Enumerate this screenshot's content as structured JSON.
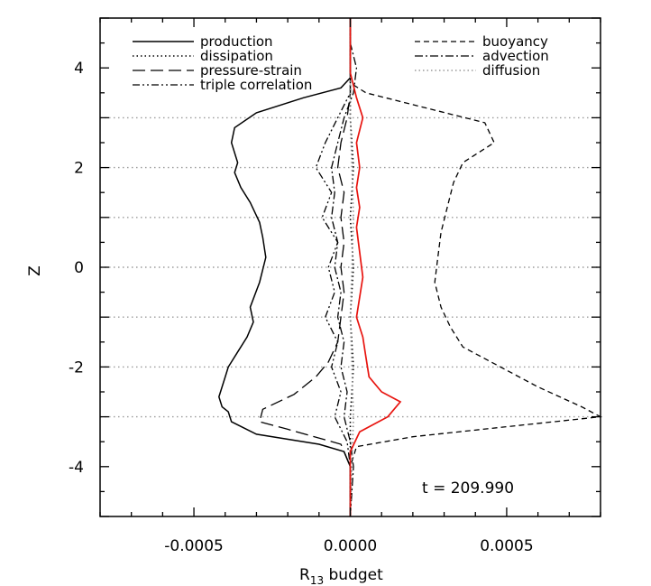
{
  "chart_data": {
    "type": "line",
    "xlabel_main": "R",
    "xlabel_sub": "13",
    "xlabel_rest": " budget",
    "ylabel": "Z",
    "xlim": [
      -0.0008,
      0.0008
    ],
    "ylim": [
      -5,
      5
    ],
    "xticks": [
      -0.0005,
      0.0,
      0.0005
    ],
    "xtick_labels": [
      "-0.0005",
      "0.0000",
      "0.0005"
    ],
    "yticks": [
      -4,
      -2,
      0,
      2,
      4
    ],
    "ytick_labels": [
      "-4",
      "-2",
      "0",
      "2",
      "4"
    ],
    "hgrid_z": [
      -3,
      -2,
      -1,
      0,
      1,
      2,
      3
    ],
    "annotation": "t  =  209.990",
    "legend_left": [
      {
        "label": "production",
        "style": "solid"
      },
      {
        "label": "dissipation",
        "style": "dotted"
      },
      {
        "label": "pressure-strain",
        "style": "longdash"
      },
      {
        "label": "triple correlation",
        "style": "dashdotdot"
      }
    ],
    "legend_right": [
      {
        "label": "buoyancy",
        "style": "dashed"
      },
      {
        "label": "advection",
        "style": "dashdot"
      },
      {
        "label": "diffusion",
        "style": "dotted-gray"
      }
    ],
    "series": [
      {
        "name": "production",
        "color": "#000000",
        "style": "solid",
        "points": [
          [
            0,
            -5
          ],
          [
            0,
            -4.0
          ],
          [
            -2e-05,
            -3.7
          ],
          [
            -0.0001,
            -3.55
          ],
          [
            -0.0003,
            -3.35
          ],
          [
            -0.00038,
            -3.1
          ],
          [
            -0.00039,
            -2.9
          ],
          [
            -0.00041,
            -2.8
          ],
          [
            -0.00042,
            -2.6
          ],
          [
            -0.0004,
            -2.2
          ],
          [
            -0.00039,
            -2.0
          ],
          [
            -0.00036,
            -1.7
          ],
          [
            -0.00033,
            -1.4
          ],
          [
            -0.00031,
            -1.1
          ],
          [
            -0.00032,
            -0.8
          ],
          [
            -0.00029,
            -0.3
          ],
          [
            -0.00027,
            0.2
          ],
          [
            -0.00028,
            0.6
          ],
          [
            -0.00029,
            0.9
          ],
          [
            -0.00032,
            1.3
          ],
          [
            -0.00035,
            1.6
          ],
          [
            -0.00037,
            1.9
          ],
          [
            -0.00036,
            2.1
          ],
          [
            -0.00038,
            2.5
          ],
          [
            -0.00037,
            2.8
          ],
          [
            -0.0003,
            3.1
          ],
          [
            -0.00015,
            3.4
          ],
          [
            -3e-05,
            3.6
          ],
          [
            0,
            3.8
          ],
          [
            0,
            5
          ]
        ]
      },
      {
        "name": "buoyancy",
        "color": "#000000",
        "style": "dashed",
        "points": [
          [
            0,
            -5
          ],
          [
            0,
            -4
          ],
          [
            2e-05,
            -3.6
          ],
          [
            0.0002,
            -3.4
          ],
          [
            0.0005,
            -3.2
          ],
          [
            0.0008,
            -3.0
          ],
          [
            0.00074,
            -2.8
          ],
          [
            0.0006,
            -2.4
          ],
          [
            0.00048,
            -2.0
          ],
          [
            0.00036,
            -1.6
          ],
          [
            0.00032,
            -1.2
          ],
          [
            0.00029,
            -0.8
          ],
          [
            0.00027,
            -0.3
          ],
          [
            0.00028,
            0.2
          ],
          [
            0.00029,
            0.7
          ],
          [
            0.00031,
            1.2
          ],
          [
            0.00033,
            1.7
          ],
          [
            0.00036,
            2.1
          ],
          [
            0.00046,
            2.5
          ],
          [
            0.00043,
            2.9
          ],
          [
            0.00024,
            3.2
          ],
          [
            5e-05,
            3.5
          ],
          [
            0,
            3.7
          ],
          [
            0,
            5
          ]
        ]
      },
      {
        "name": "pressure-strain",
        "color": "#000000",
        "style": "longdash",
        "points": [
          [
            0,
            -5
          ],
          [
            0,
            -4
          ],
          [
            -3e-05,
            -3.55
          ],
          [
            -0.0002,
            -3.25
          ],
          [
            -0.00029,
            -3.1
          ],
          [
            -0.00028,
            -2.85
          ],
          [
            -0.00018,
            -2.55
          ],
          [
            -0.00011,
            -2.2
          ],
          [
            -7e-05,
            -1.9
          ],
          [
            -4e-05,
            -1.5
          ],
          [
            -3e-05,
            -1.0
          ],
          [
            -2e-05,
            -0.5
          ],
          [
            -3e-05,
            0.0
          ],
          [
            -2e-05,
            0.5
          ],
          [
            -3e-05,
            1.0
          ],
          [
            -2e-05,
            1.5
          ],
          [
            -4e-05,
            2.0
          ],
          [
            -3e-05,
            2.5
          ],
          [
            -1e-05,
            3.0
          ],
          [
            0,
            3.5
          ],
          [
            0,
            5
          ]
        ]
      },
      {
        "name": "triple correlation",
        "color": "#000000",
        "style": "dashdotdot",
        "points": [
          [
            0,
            -5
          ],
          [
            0,
            -4
          ],
          [
            -1e-05,
            -3.5
          ],
          [
            -5e-05,
            -3.0
          ],
          [
            -3e-05,
            -2.5
          ],
          [
            -6e-05,
            -2.0
          ],
          [
            -4e-05,
            -1.5
          ],
          [
            -8e-05,
            -1.0
          ],
          [
            -5e-05,
            -0.5
          ],
          [
            -7e-05,
            0.0
          ],
          [
            -4e-05,
            0.5
          ],
          [
            -9e-05,
            1.0
          ],
          [
            -6e-05,
            1.5
          ],
          [
            -0.00011,
            2.0
          ],
          [
            -8e-05,
            2.5
          ],
          [
            -4e-05,
            3.0
          ],
          [
            0,
            3.5
          ],
          [
            0,
            5
          ]
        ]
      },
      {
        "name": "advection",
        "color": "#000000",
        "style": "dashdot",
        "points": [
          [
            0,
            -5
          ],
          [
            1e-05,
            -4
          ],
          [
            0,
            -3.5
          ],
          [
            -2e-05,
            -3.0
          ],
          [
            -1e-05,
            -2.5
          ],
          [
            -3e-05,
            -2.0
          ],
          [
            -2e-05,
            -1.5
          ],
          [
            -4e-05,
            -1.0
          ],
          [
            -3e-05,
            -0.5
          ],
          [
            -5e-05,
            0.0
          ],
          [
            -4e-05,
            0.5
          ],
          [
            -6e-05,
            1.0
          ],
          [
            -5e-05,
            1.5
          ],
          [
            -6e-05,
            2.0
          ],
          [
            -4e-05,
            2.5
          ],
          [
            -2e-05,
            3.0
          ],
          [
            1e-05,
            3.5
          ],
          [
            2e-05,
            4.0
          ],
          [
            0,
            4.5
          ],
          [
            0,
            5
          ]
        ]
      },
      {
        "name": "dissipation",
        "color": "#000000",
        "style": "dotted",
        "points": [
          [
            0,
            -5
          ],
          [
            0,
            -3
          ],
          [
            1e-05,
            -2
          ],
          [
            0,
            -1
          ],
          [
            1e-05,
            0
          ],
          [
            0,
            1
          ],
          [
            1e-05,
            2
          ],
          [
            0,
            3
          ],
          [
            0,
            5
          ]
        ]
      },
      {
        "name": "diffusion",
        "color": "#888888",
        "style": "dotted-gray",
        "points": [
          [
            0,
            -5
          ],
          [
            1e-05,
            -3
          ],
          [
            0,
            -1
          ],
          [
            1e-05,
            1
          ],
          [
            0,
            3
          ],
          [
            0,
            5
          ]
        ]
      },
      {
        "name": "",
        "color": "#e8140f",
        "style": "solid",
        "points": [
          [
            0,
            -5
          ],
          [
            0,
            -3.7
          ],
          [
            3e-05,
            -3.3
          ],
          [
            0.00012,
            -3.0
          ],
          [
            0.00016,
            -2.7
          ],
          [
            0.0001,
            -2.5
          ],
          [
            6e-05,
            -2.2
          ],
          [
            5e-05,
            -1.8
          ],
          [
            4e-05,
            -1.4
          ],
          [
            2e-05,
            -1.0
          ],
          [
            3e-05,
            -0.6
          ],
          [
            4e-05,
            -0.2
          ],
          [
            3e-05,
            0.3
          ],
          [
            2e-05,
            0.8
          ],
          [
            3e-05,
            1.2
          ],
          [
            2e-05,
            1.6
          ],
          [
            3e-05,
            2.0
          ],
          [
            2e-05,
            2.5
          ],
          [
            4e-05,
            3.0
          ],
          [
            2e-05,
            3.4
          ],
          [
            0,
            3.9
          ],
          [
            0,
            5
          ]
        ]
      }
    ]
  }
}
